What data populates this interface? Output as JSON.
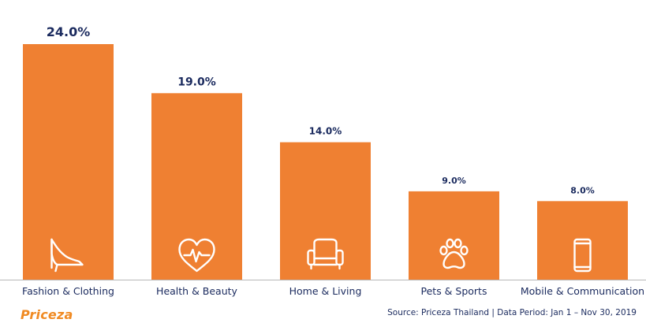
{
  "chart_data": {
    "type": "bar",
    "categories": [
      "Fashion & Clothing",
      "Health & Beauty",
      "Home & Living",
      "Pets & Sports",
      "Mobile & Communication"
    ],
    "values": [
      24.0,
      19.0,
      14.0,
      9.0,
      8.0
    ],
    "value_labels": [
      "24.0%",
      "19.0%",
      "14.0%",
      "9.0%",
      "8.0%"
    ],
    "category_icons": [
      "high-heel-icon",
      "heart-pulse-icon",
      "armchair-icon",
      "paw-icon",
      "smartphone-icon"
    ],
    "ylim": [
      0,
      24.0
    ],
    "grid": false,
    "legend": "none"
  },
  "colors": {
    "bar": "#ef8032",
    "icon_stroke": "#ffffff",
    "text": "#1a2a5e",
    "baseline": "#b8b8b8",
    "brand": "#f08a22"
  },
  "footer": {
    "logo": "Priceza",
    "source": "Source: Priceza Thailand | Data Period: Jan 1 – Nov 30, 2019"
  }
}
